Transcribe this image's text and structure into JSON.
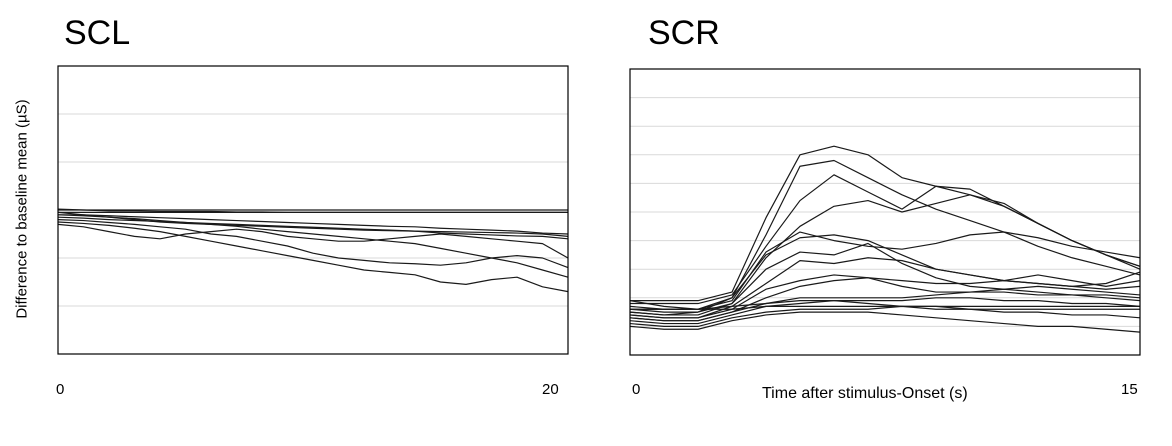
{
  "ylabel": "Difference to baseline mean (µS)",
  "xlabel": "Time after stimulus-Onset (s)",
  "chart_data": [
    {
      "type": "line",
      "title": "SCL",
      "xlim": [
        0,
        20
      ],
      "ylim": [
        0,
        6
      ],
      "x_ticks": [
        "0",
        "20"
      ],
      "grid": true,
      "x": [
        0,
        1,
        2,
        3,
        4,
        5,
        6,
        7,
        8,
        9,
        10,
        11,
        12,
        13,
        14,
        15,
        16,
        17,
        18,
        19,
        20
      ],
      "series": [
        {
          "values": [
            3.0,
            3.0,
            3.0,
            3.0,
            3.0,
            3.0,
            3.0,
            3.0,
            3.0,
            3.0,
            3.0,
            3.0,
            3.0,
            3.0,
            3.0,
            3.0,
            3.0,
            3.0,
            3.0,
            3.0,
            3.0
          ]
        },
        {
          "values": [
            2.95,
            2.95,
            2.95,
            2.95,
            2.95,
            2.95,
            2.95,
            2.95,
            2.95,
            2.95,
            2.95,
            2.95,
            2.95,
            2.95,
            2.95,
            2.95,
            2.95,
            2.95,
            2.95,
            2.95,
            2.95
          ]
        },
        {
          "values": [
            3.02,
            3.0,
            2.98,
            2.98,
            2.97,
            2.97,
            2.97,
            2.96,
            2.96,
            2.95,
            2.95,
            2.95,
            2.95,
            2.95,
            2.95,
            2.95,
            2.95,
            2.95,
            2.95,
            2.95,
            2.95
          ]
        },
        {
          "values": [
            2.9,
            2.9,
            2.88,
            2.86,
            2.84,
            2.82,
            2.8,
            2.78,
            2.76,
            2.74,
            2.72,
            2.7,
            2.68,
            2.66,
            2.65,
            2.62,
            2.6,
            2.58,
            2.56,
            2.52,
            2.5
          ]
        },
        {
          "values": [
            2.95,
            2.9,
            2.85,
            2.8,
            2.75,
            2.72,
            2.7,
            2.68,
            2.66,
            2.64,
            2.62,
            2.6,
            2.58,
            2.57,
            2.56,
            2.55,
            2.54,
            2.53,
            2.52,
            2.5,
            2.45
          ]
        },
        {
          "values": [
            2.85,
            2.83,
            2.8,
            2.78,
            2.76,
            2.74,
            2.72,
            2.7,
            2.68,
            2.66,
            2.64,
            2.62,
            2.6,
            2.58,
            2.56,
            2.52,
            2.5,
            2.48,
            2.46,
            2.45,
            2.4
          ]
        },
        {
          "values": [
            2.7,
            2.65,
            2.55,
            2.45,
            2.4,
            2.5,
            2.55,
            2.6,
            2.55,
            2.45,
            2.4,
            2.35,
            2.35,
            2.4,
            2.45,
            2.5,
            2.45,
            2.4,
            2.35,
            2.3,
            2.0
          ]
        },
        {
          "values": [
            2.8,
            2.78,
            2.74,
            2.7,
            2.65,
            2.6,
            2.5,
            2.45,
            2.35,
            2.25,
            2.1,
            2.0,
            1.95,
            1.9,
            1.88,
            1.85,
            1.9,
            2.0,
            2.05,
            2.0,
            1.8
          ]
        },
        {
          "values": [
            2.75,
            2.72,
            2.68,
            2.62,
            2.55,
            2.45,
            2.35,
            2.25,
            2.15,
            2.05,
            1.95,
            1.85,
            1.75,
            1.7,
            1.65,
            1.5,
            1.45,
            1.55,
            1.6,
            1.4,
            1.3
          ]
        },
        {
          "values": [
            2.9,
            2.88,
            2.85,
            2.82,
            2.78,
            2.74,
            2.7,
            2.66,
            2.6,
            2.55,
            2.5,
            2.45,
            2.4,
            2.35,
            2.3,
            2.2,
            2.1,
            2.0,
            1.9,
            1.75,
            1.6
          ]
        }
      ]
    },
    {
      "type": "line",
      "title": "SCR",
      "xlim": [
        0,
        15
      ],
      "ylim": [
        0,
        10
      ],
      "x_ticks": [
        "0",
        "15"
      ],
      "grid": true,
      "x": [
        0,
        1,
        2,
        3,
        4,
        5,
        6,
        7,
        8,
        9,
        10,
        11,
        12,
        13,
        14,
        15
      ],
      "series": [
        {
          "values": [
            1.9,
            1.9,
            1.9,
            2.2,
            4.8,
            7.0,
            7.3,
            7.0,
            6.2,
            5.9,
            5.6,
            5.2,
            4.6,
            4.0,
            3.5,
            3.1
          ]
        },
        {
          "values": [
            1.6,
            1.5,
            1.5,
            2.0,
            4.2,
            6.6,
            6.8,
            6.2,
            5.6,
            5.1,
            4.7,
            4.3,
            3.8,
            3.4,
            3.1,
            2.8
          ]
        },
        {
          "values": [
            1.8,
            1.8,
            1.8,
            2.1,
            3.8,
            5.4,
            6.3,
            5.7,
            5.1,
            5.9,
            5.8,
            5.2,
            4.6,
            4.0,
            3.5,
            3.1
          ]
        },
        {
          "values": [
            1.5,
            1.4,
            1.4,
            1.8,
            3.4,
            4.5,
            5.2,
            5.4,
            5.0,
            5.3,
            5.6,
            5.3,
            4.6,
            4.0,
            3.5,
            3.0
          ]
        },
        {
          "values": [
            1.7,
            1.6,
            1.6,
            1.9,
            3.6,
            4.3,
            4.0,
            3.8,
            3.7,
            3.9,
            4.2,
            4.3,
            4.1,
            3.8,
            3.6,
            3.4
          ]
        },
        {
          "values": [
            1.6,
            1.6,
            1.6,
            2.0,
            3.5,
            4.1,
            4.2,
            4.0,
            3.5,
            3.0,
            2.8,
            2.6,
            2.5,
            2.4,
            2.3,
            2.4
          ]
        },
        {
          "values": [
            1.5,
            1.4,
            1.5,
            1.8,
            3.0,
            3.6,
            3.5,
            3.9,
            3.2,
            2.7,
            2.4,
            2.3,
            2.4,
            2.3,
            2.2,
            2.1
          ]
        },
        {
          "values": [
            1.4,
            1.3,
            1.3,
            1.7,
            2.5,
            3.3,
            3.2,
            3.4,
            3.3,
            3.0,
            2.8,
            2.6,
            2.5,
            2.4,
            2.5,
            2.9
          ]
        },
        {
          "values": [
            1.4,
            1.3,
            1.3,
            1.6,
            2.3,
            2.6,
            2.8,
            2.7,
            2.6,
            2.5,
            2.5,
            2.6,
            2.8,
            2.6,
            2.4,
            2.6
          ]
        },
        {
          "values": [
            1.3,
            1.2,
            1.2,
            1.5,
            2.0,
            2.4,
            2.6,
            2.7,
            2.4,
            2.2,
            2.2,
            2.2,
            2.1,
            2.1,
            2.0,
            1.9
          ]
        },
        {
          "values": [
            1.3,
            1.2,
            1.2,
            1.5,
            1.8,
            2.0,
            2.0,
            2.0,
            2.0,
            2.1,
            2.2,
            2.3,
            2.2,
            2.1,
            2.1,
            2.0
          ]
        },
        {
          "values": [
            1.2,
            1.1,
            1.1,
            1.4,
            1.7,
            1.8,
            1.9,
            1.9,
            1.9,
            2.0,
            2.0,
            1.9,
            1.9,
            1.8,
            1.8,
            1.7
          ]
        },
        {
          "values": [
            1.1,
            1.0,
            1.0,
            1.3,
            1.5,
            1.6,
            1.6,
            1.6,
            1.7,
            1.6,
            1.6,
            1.5,
            1.5,
            1.4,
            1.4,
            1.3
          ]
        },
        {
          "values": [
            1.0,
            0.9,
            0.9,
            1.2,
            1.4,
            1.5,
            1.5,
            1.5,
            1.4,
            1.3,
            1.2,
            1.1,
            1.0,
            1.0,
            0.9,
            0.8
          ]
        },
        {
          "values": [
            1.6,
            1.6,
            1.6,
            1.7,
            1.8,
            1.9,
            1.9,
            1.8,
            1.7,
            1.7,
            1.6,
            1.6,
            1.6,
            1.6,
            1.6,
            1.6
          ]
        },
        {
          "values": [
            1.9,
            1.7,
            1.6,
            1.6,
            1.7,
            1.7,
            1.7,
            1.7,
            1.7,
            1.7,
            1.7,
            1.7,
            1.7,
            1.7,
            1.7,
            1.7
          ]
        }
      ]
    }
  ]
}
